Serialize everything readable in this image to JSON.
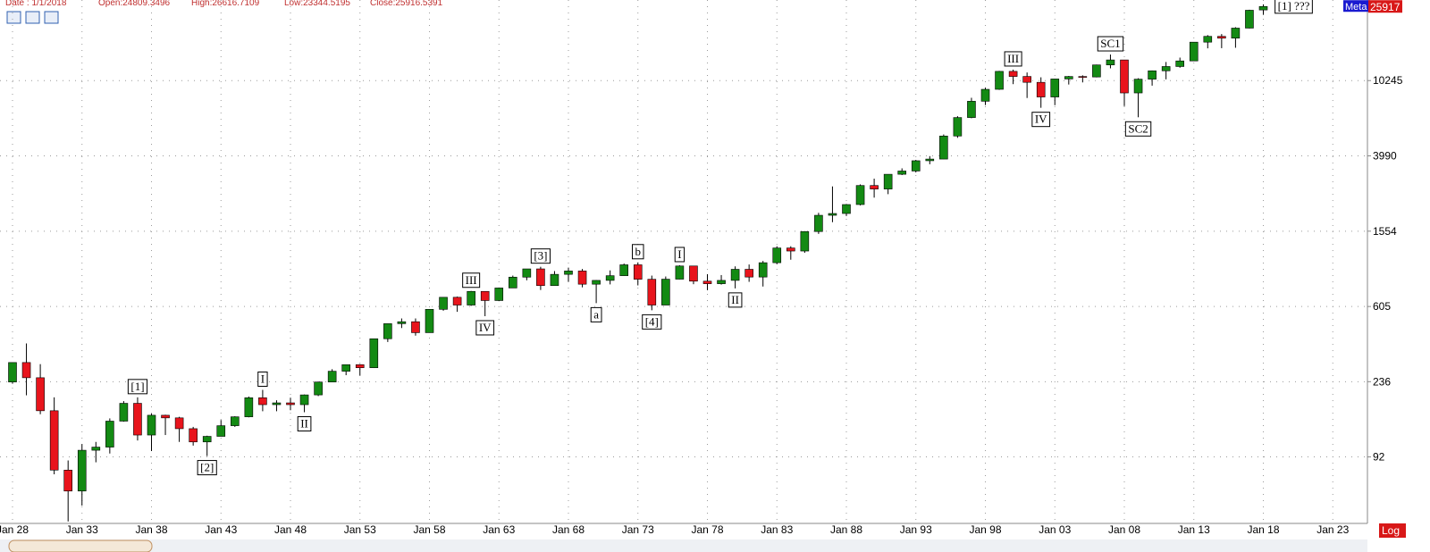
{
  "chart_data": {
    "type": "candlestick",
    "header": [
      "Date : 1/1/2018",
      "Open:24809.3496",
      "High:26616.7109",
      "Low:23344.5195",
      "Close:25916.5391"
    ],
    "categories": [
      "Jan 28",
      null,
      null,
      null,
      null,
      "Jan 33",
      null,
      null,
      null,
      null,
      "Jan 38",
      null,
      null,
      null,
      null,
      "Jan 43",
      null,
      null,
      null,
      null,
      "Jan 48",
      null,
      null,
      null,
      null,
      "Jan 53",
      null,
      null,
      null,
      null,
      "Jan 58",
      null,
      null,
      null,
      null,
      "Jan 63",
      null,
      null,
      null,
      null,
      "Jan 68",
      null,
      null,
      null,
      null,
      "Jan 73",
      null,
      null,
      null,
      null,
      "Jan 78",
      null,
      null,
      null,
      null,
      "Jan 83",
      null,
      null,
      null,
      null,
      "Jan 88",
      null,
      null,
      null,
      null,
      "Jan 93",
      null,
      null,
      null,
      null,
      "Jan 98",
      null,
      null,
      null,
      null,
      "Jan 03",
      null,
      null,
      null,
      null,
      "Jan 08",
      null,
      null,
      null,
      null,
      "Jan 13",
      null,
      null,
      null,
      null,
      "Jan 18",
      null,
      null,
      null,
      null,
      "Jan 23"
    ],
    "open": [
      235,
      300,
      248,
      164,
      78,
      60,
      100,
      104,
      144,
      180,
      121,
      155,
      150,
      131,
      111,
      119,
      136,
      152,
      193,
      177,
      181,
      177,
      200,
      235,
      269,
      292,
      281,
      404,
      488,
      500,
      436,
      584,
      679,
      616,
      731,
      652,
      763,
      874,
      969,
      786,
      905,
      944,
      800,
      839,
      890,
      1020,
      851,
      616,
      852,
      1005,
      831,
      805,
      839,
      964,
      875,
      1047,
      1259,
      1212,
      1547,
      1896,
      1939,
      2169,
      2753,
      2634,
      3169,
      3301,
      3754,
      3834,
      5117,
      6448,
      7908,
      9181,
      11497,
      10787,
      10022,
      8342,
      10454,
      10783,
      10718,
      12463,
      13265,
      8776,
      10428,
      11578,
      12218,
      13104,
      16577,
      17823,
      17425,
      19763,
      24809.3496,
      null,
      null,
      null,
      null,
      null
    ],
    "high": [
      300,
      381,
      294,
      194,
      88,
      108,
      111,
      149,
      185,
      194,
      158,
      156,
      152,
      134,
      120,
      146,
      153,
      196,
      213,
      187,
      193,
      201,
      236,
      276,
      292,
      294,
      404,
      488,
      521,
      521,
      584,
      679,
      685,
      735,
      726,
      767,
      891,
      969,
      995,
      943,
      985,
      968,
      842,
      951,
      1036,
      1051,
      891,
      881,
      1014,
      1005,
      907,
      897,
      1000,
      1024,
      1070,
      1287,
      1287,
      1553,
      1956,
      2722,
      2184,
      2792,
      3000,
      3169,
      3413,
      3794,
      3978,
      5216,
      6560,
      8259,
      9374,
      11568,
      11750,
      11337,
      10673,
      10454,
      10854,
      10940,
      12510,
      14198,
      13279,
      10548,
      11625,
      12929,
      13661,
      16588,
      18103,
      18351,
      19988,
      24876,
      26616.7109,
      null,
      null,
      null,
      null,
      null
    ],
    "low": [
      230,
      199,
      157,
      74,
      41,
      50,
      86,
      96,
      143,
      113,
      99,
      121,
      111,
      106,
      93,
      119,
      134,
      151,
      163,
      163,
      165,
      161,
      197,
      235,
      256,
      255,
      280,
      388,
      462,
      420,
      436,
      574,
      566,
      610,
      536,
      647,
      766,
      840,
      744,
      786,
      825,
      769,
      631,
      798,
      889,
      788,
      577,
      616,
      850,
      800,
      742,
      796,
      759,
      824,
      777,
      1027,
      1087,
      1185,
      1502,
      1739,
      1879,
      2145,
      2365,
      2470,
      3137,
      3242,
      3593,
      3832,
      5000,
      6391,
      7539,
      9121,
      9796,
      8236,
      7286,
      7524,
      9750,
      10012,
      10661,
      11940,
      7449,
      6470,
      9614,
      10404,
      12035,
      13104,
      15340,
      15370,
      15450,
      19677,
      23344.5195,
      null,
      null,
      null,
      null,
      null
    ],
    "close": [
      300,
      248,
      164,
      78,
      60,
      100,
      104,
      144,
      180,
      121,
      155,
      150,
      131,
      111,
      119,
      136,
      152,
      193,
      177,
      181,
      177,
      200,
      235,
      269,
      292,
      281,
      404,
      488,
      500,
      436,
      584,
      679,
      616,
      731,
      652,
      763,
      874,
      969,
      786,
      905,
      944,
      800,
      839,
      890,
      1020,
      851,
      616,
      852,
      1005,
      831,
      805,
      839,
      964,
      875,
      1047,
      1259,
      1212,
      1547,
      1896,
      1939,
      2169,
      2753,
      2634,
      3169,
      3301,
      3754,
      3834,
      5117,
      6448,
      7908,
      9181,
      11497,
      10787,
      10022,
      8342,
      10454,
      10783,
      10718,
      12463,
      13265,
      8776,
      10428,
      11578,
      12218,
      13104,
      16577,
      17823,
      17425,
      19763,
      24719,
      25916.5391,
      null,
      null,
      null,
      null,
      null
    ],
    "up_color": "#138a13",
    "down_color": "#e8141c",
    "ylim": [
      40,
      28100
    ],
    "yticks": [
      92,
      236,
      605,
      1554,
      3990,
      10245
    ],
    "log_scale": true,
    "grid": true,
    "last_price": 25917,
    "tag": "Meta",
    "scale_label": "Log",
    "annotations": [
      "[1]",
      "[2]",
      "I",
      "II",
      "III",
      "IV",
      "[3]",
      "a",
      "b",
      "[4]",
      "I",
      "II",
      "III",
      "IV",
      "SC1",
      "SC2",
      "[1] ???"
    ]
  }
}
